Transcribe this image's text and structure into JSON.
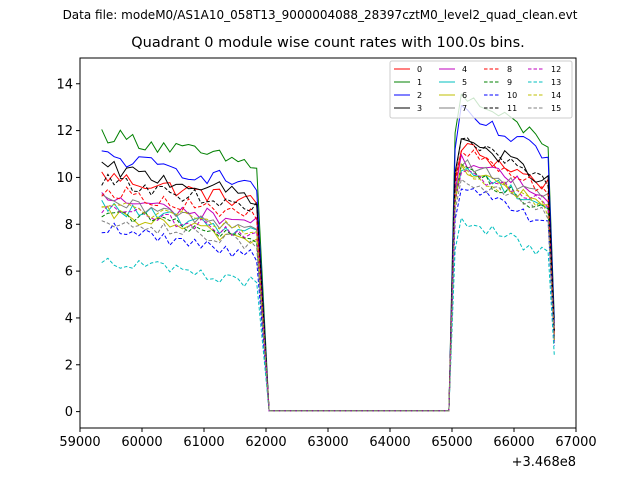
{
  "suptitle": "Data file: modeM0/AS1A10_058T13_9000004088_28397cztM0_level2_quad_clean.evt",
  "chart_data": {
    "type": "line",
    "title": "Quadrant 0 module wise count rates with 100.0s bins.",
    "xlabel": "",
    "ylabel": "",
    "x_offset_label": "+3.468e8",
    "xlim": [
      59000,
      67000
    ],
    "ylim": [
      -0.7,
      15.1
    ],
    "xticks": [
      59000,
      60000,
      61000,
      62000,
      63000,
      64000,
      65000,
      66000,
      67000
    ],
    "yticks": [
      0,
      2,
      4,
      6,
      8,
      10,
      12,
      14
    ],
    "grid": false,
    "legend_position": "top-right",
    "legend_columns": 4,
    "segments": [
      [
        59350,
        61850
      ],
      [
        62050,
        64950
      ],
      [
        65050,
        66650
      ]
    ],
    "series": [
      {
        "name": "0",
        "color": "#ff0000",
        "dash": "solid",
        "level1": 9.5,
        "level2": 10.5,
        "tilt": 1.3,
        "amp": 0.35
      },
      {
        "name": "1",
        "color": "#008000",
        "dash": "solid",
        "level1": 11.2,
        "level2": 12.5,
        "tilt": 1.5,
        "amp": 0.35
      },
      {
        "name": "2",
        "color": "#0000ff",
        "dash": "solid",
        "level1": 10.3,
        "level2": 11.8,
        "tilt": 1.4,
        "amp": 0.35
      },
      {
        "name": "3",
        "color": "#000000",
        "dash": "solid",
        "level1": 9.8,
        "level2": 10.8,
        "tilt": 1.4,
        "amp": 0.35
      },
      {
        "name": "4",
        "color": "#bf00bf",
        "dash": "solid",
        "level1": 8.6,
        "level2": 10.0,
        "tilt": 1.2,
        "amp": 0.3
      },
      {
        "name": "5",
        "color": "#00bfbf",
        "dash": "solid",
        "level1": 8.2,
        "level2": 9.6,
        "tilt": 1.3,
        "amp": 0.3
      },
      {
        "name": "6",
        "color": "#bfbf00",
        "dash": "solid",
        "level1": 7.9,
        "level2": 9.6,
        "tilt": 1.3,
        "amp": 0.3
      },
      {
        "name": "7",
        "color": "#808080",
        "dash": "solid",
        "level1": 8.4,
        "level2": 9.9,
        "tilt": 1.3,
        "amp": 0.3
      },
      {
        "name": "8",
        "color": "#ff0000",
        "dash": "dashed",
        "level1": 8.9,
        "level2": 10.3,
        "tilt": 1.3,
        "amp": 0.3
      },
      {
        "name": "9",
        "color": "#008000",
        "dash": "dashed",
        "level1": 8.0,
        "level2": 9.5,
        "tilt": 1.3,
        "amp": 0.3
      },
      {
        "name": "10",
        "color": "#0000ff",
        "dash": "dashed",
        "level1": 7.3,
        "level2": 8.8,
        "tilt": 1.3,
        "amp": 0.3
      },
      {
        "name": "11",
        "color": "#000000",
        "dash": "dashed",
        "level1": 9.3,
        "level2": 10.7,
        "tilt": 1.3,
        "amp": 0.3
      },
      {
        "name": "12",
        "color": "#bf00bf",
        "dash": "dashed",
        "level1": 8.1,
        "level2": 9.6,
        "tilt": 1.3,
        "amp": 0.3
      },
      {
        "name": "13",
        "color": "#00bfbf",
        "dash": "dashed",
        "level1": 6.0,
        "level2": 7.5,
        "tilt": 1.2,
        "amp": 0.3
      },
      {
        "name": "14",
        "color": "#bfbf00",
        "dash": "dashed",
        "level1": 8.3,
        "level2": 9.5,
        "tilt": 1.3,
        "amp": 0.3
      },
      {
        "name": "15",
        "color": "#808080",
        "dash": "dashed",
        "level1": 7.7,
        "level2": 9.2,
        "tilt": 1.3,
        "amp": 0.3
      }
    ]
  }
}
